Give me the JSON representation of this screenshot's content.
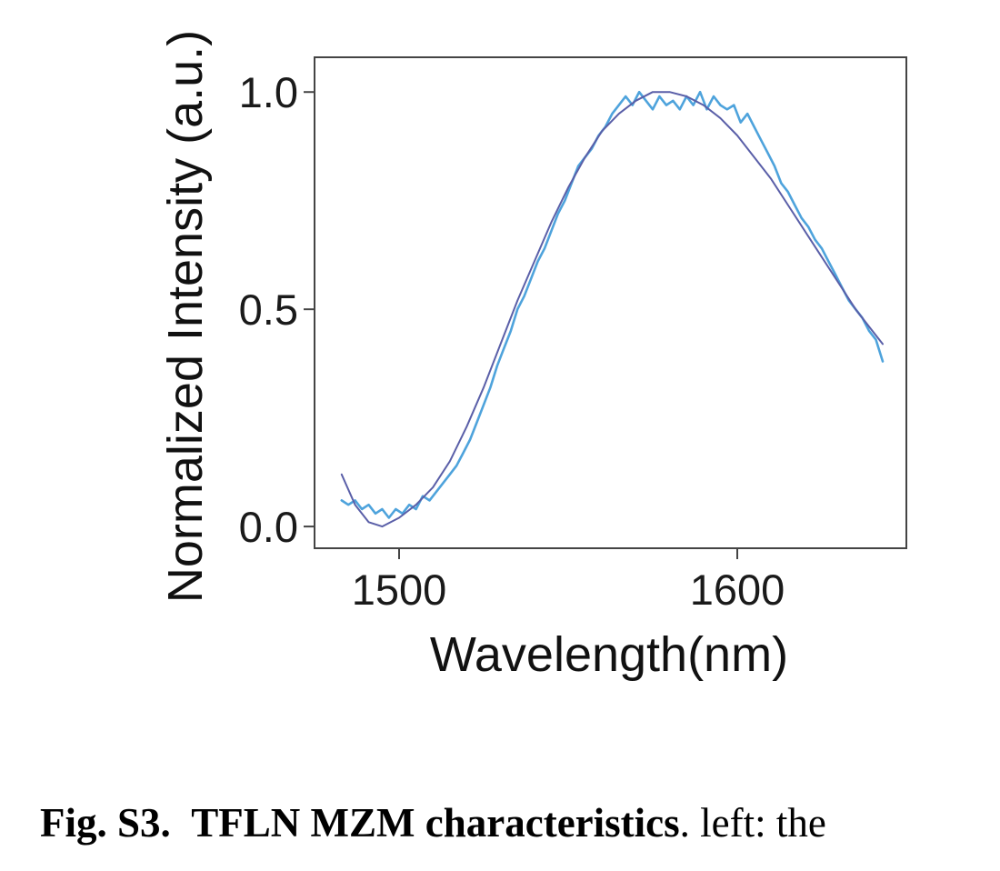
{
  "chart_data": {
    "type": "line",
    "title": "",
    "xlabel": "Wavelength(nm)",
    "ylabel": "Normalized Intensity (a.u.)",
    "xlim": [
      1475,
      1650
    ],
    "ylim": [
      -0.05,
      1.08
    ],
    "xticks": [
      1500,
      1600
    ],
    "xtick_labels": [
      "1500",
      "1600"
    ],
    "yticks": [
      0.0,
      0.5,
      1.0
    ],
    "ytick_labels": [
      "0.0",
      "0.5",
      "1.0"
    ],
    "grid": false,
    "legend": "none",
    "series": [
      {
        "color": "#4ea3dc",
        "style": "measured",
        "x": [
          1483,
          1485,
          1487,
          1489,
          1491,
          1493,
          1495,
          1497,
          1499,
          1501,
          1503,
          1505,
          1507,
          1509,
          1511,
          1513,
          1515,
          1517,
          1519,
          1521,
          1523,
          1525,
          1527,
          1529,
          1531,
          1533,
          1535,
          1537,
          1539,
          1541,
          1543,
          1545,
          1547,
          1549,
          1551,
          1553,
          1555,
          1557,
          1559,
          1561,
          1563,
          1565,
          1567,
          1569,
          1571,
          1573,
          1575,
          1577,
          1579,
          1581,
          1583,
          1585,
          1587,
          1589,
          1591,
          1593,
          1595,
          1597,
          1599,
          1601,
          1603,
          1605,
          1607,
          1609,
          1611,
          1613,
          1615,
          1617,
          1619,
          1621,
          1623,
          1625,
          1627,
          1629,
          1631,
          1633,
          1635,
          1637,
          1639,
          1641,
          1643
        ],
        "values": [
          0.06,
          0.05,
          0.06,
          0.04,
          0.05,
          0.03,
          0.04,
          0.02,
          0.04,
          0.03,
          0.05,
          0.04,
          0.07,
          0.06,
          0.08,
          0.1,
          0.12,
          0.14,
          0.17,
          0.2,
          0.24,
          0.28,
          0.32,
          0.37,
          0.41,
          0.45,
          0.5,
          0.53,
          0.57,
          0.61,
          0.64,
          0.68,
          0.72,
          0.75,
          0.79,
          0.83,
          0.85,
          0.87,
          0.9,
          0.92,
          0.95,
          0.97,
          0.99,
          0.97,
          1.0,
          0.98,
          0.96,
          0.99,
          0.97,
          0.98,
          0.96,
          0.99,
          0.97,
          1.0,
          0.96,
          0.99,
          0.97,
          0.96,
          0.97,
          0.93,
          0.95,
          0.92,
          0.89,
          0.86,
          0.83,
          0.79,
          0.77,
          0.74,
          0.71,
          0.69,
          0.66,
          0.64,
          0.61,
          0.58,
          0.55,
          0.52,
          0.5,
          0.48,
          0.45,
          0.43,
          0.38
        ]
      },
      {
        "color": "#5a5fa8",
        "style": "fit",
        "x": [
          1483,
          1487,
          1491,
          1495,
          1500,
          1505,
          1510,
          1515,
          1520,
          1525,
          1530,
          1535,
          1540,
          1545,
          1550,
          1555,
          1560,
          1565,
          1570,
          1575,
          1580,
          1585,
          1590,
          1595,
          1600,
          1605,
          1610,
          1615,
          1620,
          1625,
          1630,
          1635,
          1640,
          1643
        ],
        "values": [
          0.12,
          0.05,
          0.01,
          0.0,
          0.02,
          0.05,
          0.09,
          0.15,
          0.23,
          0.32,
          0.42,
          0.52,
          0.61,
          0.7,
          0.78,
          0.85,
          0.91,
          0.95,
          0.98,
          1.0,
          1.0,
          0.99,
          0.97,
          0.94,
          0.9,
          0.85,
          0.8,
          0.74,
          0.68,
          0.62,
          0.56,
          0.5,
          0.45,
          0.42
        ]
      }
    ]
  },
  "caption": {
    "label": "Fig. S3.",
    "title": "TFLN MZM characteristics",
    "text": ". left: the"
  }
}
